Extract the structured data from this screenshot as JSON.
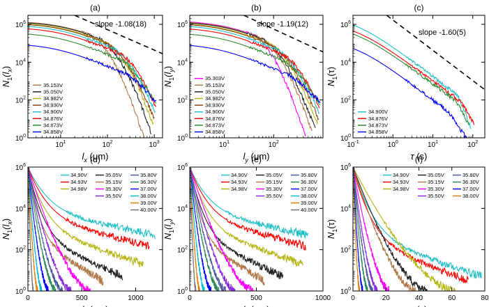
{
  "chart_data": [
    {
      "panel": "(a)",
      "type": "line",
      "xscale": "log",
      "yscale": "log",
      "xlim": [
        2,
        1500
      ],
      "ylim": [
        1,
        3000000
      ],
      "xlabel": "l_x (μm)",
      "xlabel_main": "l",
      "xlabel_sub": "x",
      "xlabel_unit": " (μm)",
      "ylabel": "N_1(l_x)",
      "ylabel_pre": "N",
      "ylabel_sub": "1",
      "ylabel_post": "(l",
      "ylabel_post_sub": "x",
      "ylabel_close": ")",
      "xticks": [
        10,
        100,
        1000
      ],
      "yticks": [
        1,
        100,
        10000,
        1000000
      ],
      "xtick_labels": [
        {
          "b": "10",
          "e": "1"
        },
        {
          "b": "10",
          "e": "2"
        },
        {
          "b": "10",
          "e": "3"
        }
      ],
      "ytick_labels": [
        {
          "b": "10",
          "e": "0"
        },
        {
          "b": "10",
          "e": "2"
        },
        {
          "b": "10",
          "e": "4"
        },
        {
          "b": "10",
          "e": "6"
        }
      ],
      "annotation": "slope -1.08(18)",
      "slope_line": {
        "x0": 20,
        "y0": 3000000,
        "x1": 1500,
        "y1": 28000
      },
      "legend_position": "lower-left",
      "series": [
        {
          "name": "35.153V",
          "color": "#b07a4a",
          "amp": 1500000,
          "x1": 12,
          "slope": 1.08,
          "xmax": 600,
          "ymin": 1,
          "cut": 0.5
        },
        {
          "name": "35.050V",
          "color": "#222222",
          "amp": 1400000,
          "x1": 12,
          "slope": 1.08,
          "xmax": 850,
          "ymin": 2,
          "cut": 0.45
        },
        {
          "name": "34.982V",
          "color": "#b5b514",
          "amp": 1250000,
          "x1": 11,
          "slope": 1.08,
          "xmax": 950,
          "ymin": 5,
          "cut": 0.4
        },
        {
          "name": "34.930V",
          "color": "#8b4513",
          "amp": 1150000,
          "x1": 11,
          "slope": 1.08,
          "xmax": 1000,
          "ymin": 10,
          "cut": 0.4
        },
        {
          "name": "34.900V",
          "color": "#20c0c8",
          "amp": 950000,
          "x1": 10,
          "slope": 1.08,
          "xmax": 1050,
          "ymin": 20,
          "cut": 0.35
        },
        {
          "name": "34.876V",
          "color": "#ff0000",
          "amp": 700000,
          "x1": 10,
          "slope": 1.08,
          "xmax": 1100,
          "ymin": 40,
          "cut": 0.3
        },
        {
          "name": "34.873V",
          "color": "#2e8b2e",
          "amp": 380000,
          "x1": 9,
          "slope": 1.08,
          "xmax": 1100,
          "ymin": 60,
          "cut": 0.3
        },
        {
          "name": "34.858V",
          "color": "#0000ff",
          "amp": 100000,
          "x1": 8,
          "slope": 1.08,
          "xmax": 1100,
          "ymin": 80,
          "cut": 0.25
        }
      ]
    },
    {
      "panel": "(b)",
      "type": "line",
      "xscale": "log",
      "yscale": "log",
      "xlim": [
        2,
        1000
      ],
      "ylim": [
        1,
        3000000
      ],
      "xlabel": "l_y (μm)",
      "xlabel_main": "l",
      "xlabel_sub": "y",
      "xlabel_unit": " (μm)",
      "ylabel": "N_1(l_y)",
      "ylabel_pre": "N",
      "ylabel_sub": "1",
      "ylabel_post": "(l",
      "ylabel_post_sub": "y",
      "ylabel_close": ")",
      "xticks": [
        10,
        100
      ],
      "yticks": [
        1,
        100,
        10000,
        1000000
      ],
      "xtick_labels": [
        {
          "b": "10",
          "e": "1"
        },
        {
          "b": "10",
          "e": "2"
        }
      ],
      "ytick_labels": [
        {
          "b": "10",
          "e": "0"
        },
        {
          "b": "10",
          "e": "2"
        },
        {
          "b": "10",
          "e": "4"
        },
        {
          "b": "10",
          "e": "6"
        }
      ],
      "annotation": "slope -1.19(12)",
      "slope_line": {
        "x0": 25,
        "y0": 3000000,
        "x1": 1000,
        "y1": 35000
      },
      "legend_position": "lower-left",
      "series": [
        {
          "name": "35.303V",
          "color": "#ff00ff",
          "amp": 1600000,
          "x1": 12,
          "slope": 1.19,
          "xmax": 450,
          "ymin": 1,
          "cut": 0.5
        },
        {
          "name": "35.153V",
          "color": "#b07a4a",
          "amp": 1500000,
          "x1": 12,
          "slope": 1.19,
          "xmax": 600,
          "ymin": 2,
          "cut": 0.45
        },
        {
          "name": "35.050V",
          "color": "#222222",
          "amp": 1400000,
          "x1": 12,
          "slope": 1.19,
          "xmax": 700,
          "ymin": 3,
          "cut": 0.45
        },
        {
          "name": "34.982V",
          "color": "#b5b514",
          "amp": 1250000,
          "x1": 11,
          "slope": 1.19,
          "xmax": 780,
          "ymin": 5,
          "cut": 0.4
        },
        {
          "name": "34.930V",
          "color": "#8b4513",
          "amp": 1150000,
          "x1": 11,
          "slope": 1.19,
          "xmax": 820,
          "ymin": 10,
          "cut": 0.4
        },
        {
          "name": "34.900V",
          "color": "#20c0c8",
          "amp": 950000,
          "x1": 10,
          "slope": 1.19,
          "xmax": 850,
          "ymin": 20,
          "cut": 0.35
        },
        {
          "name": "34.876V",
          "color": "#ff0000",
          "amp": 700000,
          "x1": 10,
          "slope": 1.19,
          "xmax": 860,
          "ymin": 40,
          "cut": 0.3
        },
        {
          "name": "34.873V",
          "color": "#2e8b2e",
          "amp": 380000,
          "x1": 9,
          "slope": 1.19,
          "xmax": 870,
          "ymin": 60,
          "cut": 0.3
        },
        {
          "name": "34.858V",
          "color": "#0000ff",
          "amp": 100000,
          "x1": 8,
          "slope": 1.19,
          "xmax": 880,
          "ymin": 80,
          "cut": 0.25
        }
      ]
    },
    {
      "panel": "(c)",
      "type": "line",
      "xscale": "log",
      "yscale": "log",
      "xlim": [
        0.1,
        200
      ],
      "ylim": [
        1,
        3000000
      ],
      "xlabel": "τ (s)",
      "xlabel_main": "τ",
      "xlabel_sub": "",
      "xlabel_unit": " (s)",
      "ylabel": "N_1(τ)",
      "ylabel_pre": "N",
      "ylabel_sub": "1",
      "ylabel_post": "(τ",
      "ylabel_post_sub": "",
      "ylabel_close": ")",
      "xticks": [
        0.1,
        1,
        10,
        100
      ],
      "yticks": [
        1,
        100,
        10000,
        1000000
      ],
      "xtick_labels": [
        {
          "b": "10",
          "e": "-1"
        },
        {
          "b": "10",
          "e": "0"
        },
        {
          "b": "10",
          "e": "1"
        },
        {
          "b": "10",
          "e": "2"
        }
      ],
      "ytick_labels": [
        {
          "b": "10",
          "e": "0"
        },
        {
          "b": "10",
          "e": "2"
        },
        {
          "b": "10",
          "e": "4"
        },
        {
          "b": "10",
          "e": "6"
        }
      ],
      "annotation": "slope -1.60(5)",
      "slope_line": {
        "x0": 0.7,
        "y0": 3000000,
        "x1": 200,
        "y1": 350
      },
      "legend_position": "lower-left",
      "series": [
        {
          "name": "34.900V",
          "color": "#20c0c8",
          "amp": 2800000,
          "x1": 0.1,
          "slope": 1.6,
          "xmax": 90,
          "ymin": 3,
          "cut": 0.15
        },
        {
          "name": "34.876V",
          "color": "#ff0000",
          "amp": 1300000,
          "x1": 0.1,
          "slope": 1.55,
          "xmax": 110,
          "ymin": 5,
          "cut": 0.15
        },
        {
          "name": "34.873V",
          "color": "#2e8b2e",
          "amp": 900000,
          "x1": 0.1,
          "slope": 1.55,
          "xmax": 80,
          "ymin": 5,
          "cut": 0.15
        },
        {
          "name": "34.858V",
          "color": "#0000ff",
          "amp": 160000,
          "x1": 0.1,
          "slope": 1.6,
          "xmax": 70,
          "ymin": 1,
          "cut": 0.2
        }
      ]
    },
    {
      "panel": "(d)",
      "type": "line",
      "xscale": "linear",
      "yscale": "log",
      "xlim": [
        0,
        1250
      ],
      "ylim": [
        1,
        1000000
      ],
      "xlabel": "l_x (μm)",
      "xlabel_main": "l",
      "xlabel_sub": "x",
      "xlabel_unit": " (μm)",
      "ylabel": "N_1(l_x)",
      "ylabel_pre": "N",
      "ylabel_sub": "1",
      "ylabel_post": "(l",
      "ylabel_post_sub": "x",
      "ylabel_close": ")",
      "xticks": [
        0,
        500,
        1000
      ],
      "yticks": [
        1,
        100,
        10000,
        1000000
      ],
      "xtick_labels": [
        {
          "b": "0",
          "e": ""
        },
        {
          "b": "500",
          "e": ""
        },
        {
          "b": "1000",
          "e": ""
        }
      ],
      "ytick_labels": [
        {
          "b": "10",
          "e": "0"
        },
        {
          "b": "10",
          "e": "2"
        },
        {
          "b": "10",
          "e": "4"
        },
        {
          "b": "10",
          "e": "6"
        }
      ],
      "legend_position": "top-right",
      "series": [
        {
          "name": "34.90V",
          "color": "#20c0c8",
          "xmax": 1180,
          "yend": 500
        },
        {
          "name": "34.93V",
          "color": "#ff0000",
          "xmax": 1130,
          "yend": 150
        },
        {
          "name": "34.98V",
          "color": "#b5b514",
          "xmax": 1070,
          "yend": 20
        },
        {
          "name": "35.05V",
          "color": "#222222",
          "xmax": 880,
          "yend": 5
        },
        {
          "name": "35.15V",
          "color": "#b07a4a",
          "xmax": 700,
          "yend": 3
        },
        {
          "name": "35.30V",
          "color": "#ff00ff",
          "xmax": 580,
          "yend": 1.5
        },
        {
          "name": "35.50V",
          "color": "#8a2be2",
          "xmax": 400,
          "yend": 1
        },
        {
          "name": "35.80V",
          "color": "#4b5a9a",
          "xmax": 320,
          "yend": 1
        },
        {
          "name": "36.30V",
          "color": "#2e8b57",
          "xmax": 260,
          "yend": 1
        },
        {
          "name": "37.00V",
          "color": "#0000ff",
          "xmax": 190,
          "yend": 1
        },
        {
          "name": "38.00V",
          "color": "#00bcd4",
          "xmax": 130,
          "yend": 1
        },
        {
          "name": "39.00V",
          "color": "#e07b00",
          "xmax": 90,
          "yend": 1
        },
        {
          "name": "40.00V",
          "color": "#777777",
          "xmax": 50,
          "yend": 1
        }
      ]
    },
    {
      "panel": "(e)",
      "type": "line",
      "xscale": "linear",
      "yscale": "log",
      "xlim": [
        0,
        1000
      ],
      "ylim": [
        1,
        1000000
      ],
      "xlabel": "l_y (μm)",
      "xlabel_main": "l",
      "xlabel_sub": "y",
      "xlabel_unit": " (μm)",
      "ylabel": "N_1(l_y)",
      "ylabel_pre": "N",
      "ylabel_sub": "1",
      "ylabel_post": "(l",
      "ylabel_post_sub": "y",
      "ylabel_close": ")",
      "xticks": [
        0,
        500,
        1000
      ],
      "yticks": [
        1,
        100,
        10000,
        1000000
      ],
      "xtick_labels": [
        {
          "b": "0",
          "e": ""
        },
        {
          "b": "500",
          "e": ""
        },
        {
          "b": "1000",
          "e": ""
        }
      ],
      "ytick_labels": [
        {
          "b": "10",
          "e": "0"
        },
        {
          "b": "10",
          "e": "2"
        },
        {
          "b": "10",
          "e": "4"
        },
        {
          "b": "10",
          "e": "6"
        }
      ],
      "legend_position": "top-right",
      "series": [
        {
          "name": "34.90V",
          "color": "#20c0c8",
          "xmax": 890,
          "yend": 500
        },
        {
          "name": "34.93V",
          "color": "#ff0000",
          "xmax": 870,
          "yend": 150
        },
        {
          "name": "34.98V",
          "color": "#b5b514",
          "xmax": 850,
          "yend": 20
        },
        {
          "name": "35.05V",
          "color": "#222222",
          "xmax": 700,
          "yend": 5
        },
        {
          "name": "35.15V",
          "color": "#b07a4a",
          "xmax": 560,
          "yend": 3
        },
        {
          "name": "35.30V",
          "color": "#ff00ff",
          "xmax": 480,
          "yend": 1.5
        },
        {
          "name": "35.50V",
          "color": "#8a2be2",
          "xmax": 340,
          "yend": 1
        },
        {
          "name": "35.80V",
          "color": "#4b5a9a",
          "xmax": 270,
          "yend": 1
        },
        {
          "name": "36.30V",
          "color": "#2e8b57",
          "xmax": 220,
          "yend": 1
        },
        {
          "name": "37.00V",
          "color": "#0000ff",
          "xmax": 160,
          "yend": 1
        },
        {
          "name": "38.00V",
          "color": "#00bcd4",
          "xmax": 110,
          "yend": 1
        },
        {
          "name": "39.00V",
          "color": "#e07b00",
          "xmax": 75,
          "yend": 1
        },
        {
          "name": "40.00V",
          "color": "#777777",
          "xmax": 45,
          "yend": 1
        }
      ]
    },
    {
      "panel": "(f)",
      "type": "line",
      "xscale": "linear",
      "yscale": "log",
      "xlim": [
        0,
        80
      ],
      "ylim": [
        1,
        1000000
      ],
      "xlabel": "τ (s)",
      "xlabel_main": "τ",
      "xlabel_sub": "",
      "xlabel_unit": " (s)",
      "ylabel": "N_1(τ)",
      "ylabel_pre": "N",
      "ylabel_sub": "1",
      "ylabel_post": "(τ",
      "ylabel_post_sub": "",
      "ylabel_close": ")",
      "xticks": [
        0,
        20,
        40,
        60,
        80
      ],
      "yticks": [
        1,
        100,
        10000,
        1000000
      ],
      "xtick_labels": [
        {
          "b": "0",
          "e": ""
        },
        {
          "b": "20",
          "e": ""
        },
        {
          "b": "40",
          "e": ""
        },
        {
          "b": "60",
          "e": ""
        },
        {
          "b": "80",
          "e": ""
        }
      ],
      "ytick_labels": [
        {
          "b": "10",
          "e": "0"
        },
        {
          "b": "10",
          "e": "2"
        },
        {
          "b": "10",
          "e": "4"
        },
        {
          "b": "10",
          "e": "6"
        }
      ],
      "legend_position": "top-right",
      "series": [
        {
          "name": "34.90V",
          "color": "#20c0c8",
          "xmax": 78,
          "yend": 5
        },
        {
          "name": "34.93V",
          "color": "#ff0000",
          "xmax": 70,
          "yend": 3
        },
        {
          "name": "34.98V",
          "color": "#b5b514",
          "xmax": 62,
          "yend": 2
        },
        {
          "name": "35.05V",
          "color": "#222222",
          "xmax": 45,
          "yend": 1
        },
        {
          "name": "35.15V",
          "color": "#b07a4a",
          "xmax": 38,
          "yend": 1
        },
        {
          "name": "35.30V",
          "color": "#ff00ff",
          "xmax": 22,
          "yend": 1
        },
        {
          "name": "35.50V",
          "color": "#8a2be2",
          "xmax": 15,
          "yend": 1
        },
        {
          "name": "35.80V",
          "color": "#4b5a9a",
          "xmax": 12,
          "yend": 1
        },
        {
          "name": "36.30V",
          "color": "#2e8b57",
          "xmax": 9,
          "yend": 1
        },
        {
          "name": "37.00V",
          "color": "#0000ff",
          "xmax": 6,
          "yend": 1
        },
        {
          "name": "38.00V",
          "color": "#e07b00",
          "xmax": 4,
          "yend": 1
        }
      ]
    }
  ]
}
